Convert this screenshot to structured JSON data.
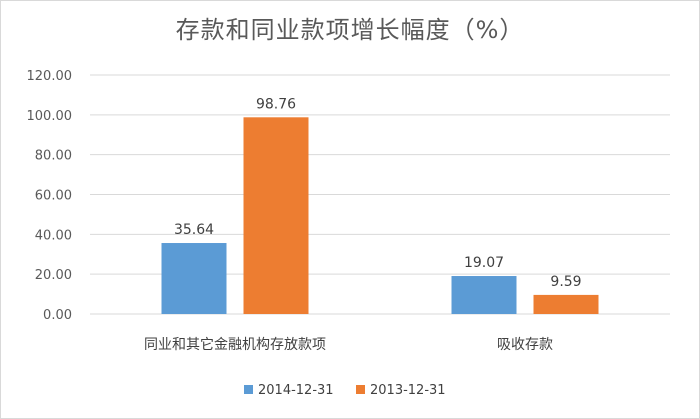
{
  "chart_data": {
    "type": "bar",
    "title": "存款和同业款项增长幅度（%）",
    "categories": [
      "同业和其它金融机构存放款项",
      "吸收存款"
    ],
    "series": [
      {
        "name": "2014-12-31",
        "values": [
          35.64,
          19.07
        ],
        "color": "#5B9BD5"
      },
      {
        "name": "2013-12-31",
        "values": [
          98.76,
          9.59
        ],
        "color": "#ED7D31"
      }
    ],
    "value_labels": [
      [
        "35.64",
        "19.07"
      ],
      [
        "98.76",
        "9.59"
      ]
    ],
    "yticks": [
      "0.00",
      "20.00",
      "40.00",
      "60.00",
      "80.00",
      "100.00",
      "120.00"
    ],
    "ylim": [
      0,
      120
    ],
    "grid": true,
    "legend_position": "bottom"
  }
}
